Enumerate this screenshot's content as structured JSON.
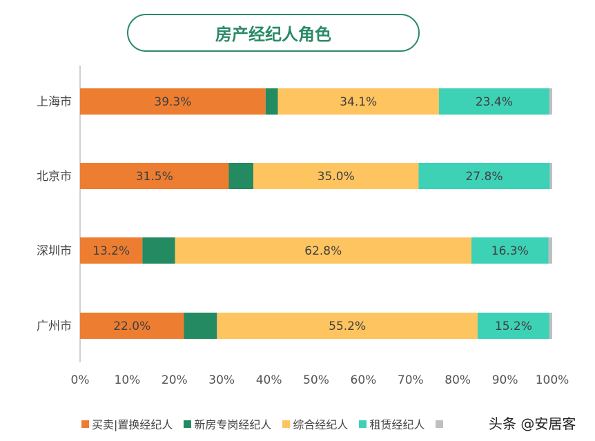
{
  "chart_data": {
    "type": "bar",
    "orientation": "horizontal",
    "stacked": "percent",
    "title": "房产经纪人角色",
    "categories": [
      "上海市",
      "北京市",
      "深圳市",
      "广州市"
    ],
    "series": [
      {
        "name": "买卖|置换经纪人",
        "color": "#ed7d31",
        "values": [
          39.3,
          31.5,
          13.2,
          22.0
        ],
        "labeled": true
      },
      {
        "name": "新房专岗经纪人",
        "color": "#238a62",
        "values": [
          2.6,
          5.2,
          6.9,
          7.0
        ],
        "labeled": false
      },
      {
        "name": "综合经纪人",
        "color": "#fec45f",
        "values": [
          34.1,
          35.0,
          62.8,
          55.2
        ],
        "labeled": true
      },
      {
        "name": "租赁经纪人",
        "color": "#3dd1b6",
        "values": [
          23.4,
          27.8,
          16.3,
          15.2
        ],
        "labeled": true
      },
      {
        "name": "",
        "color": "#bfbfbf",
        "values": [
          0.6,
          0.5,
          0.8,
          0.6
        ],
        "labeled": false
      }
    ],
    "xlim": [
      0,
      100
    ],
    "xticks": [
      "0%",
      "10%",
      "20%",
      "30%",
      "40%",
      "50%",
      "60%",
      "70%",
      "80%",
      "90%",
      "100%"
    ],
    "grid": false,
    "legend": "bottom"
  },
  "watermark": "头条 @安居客"
}
